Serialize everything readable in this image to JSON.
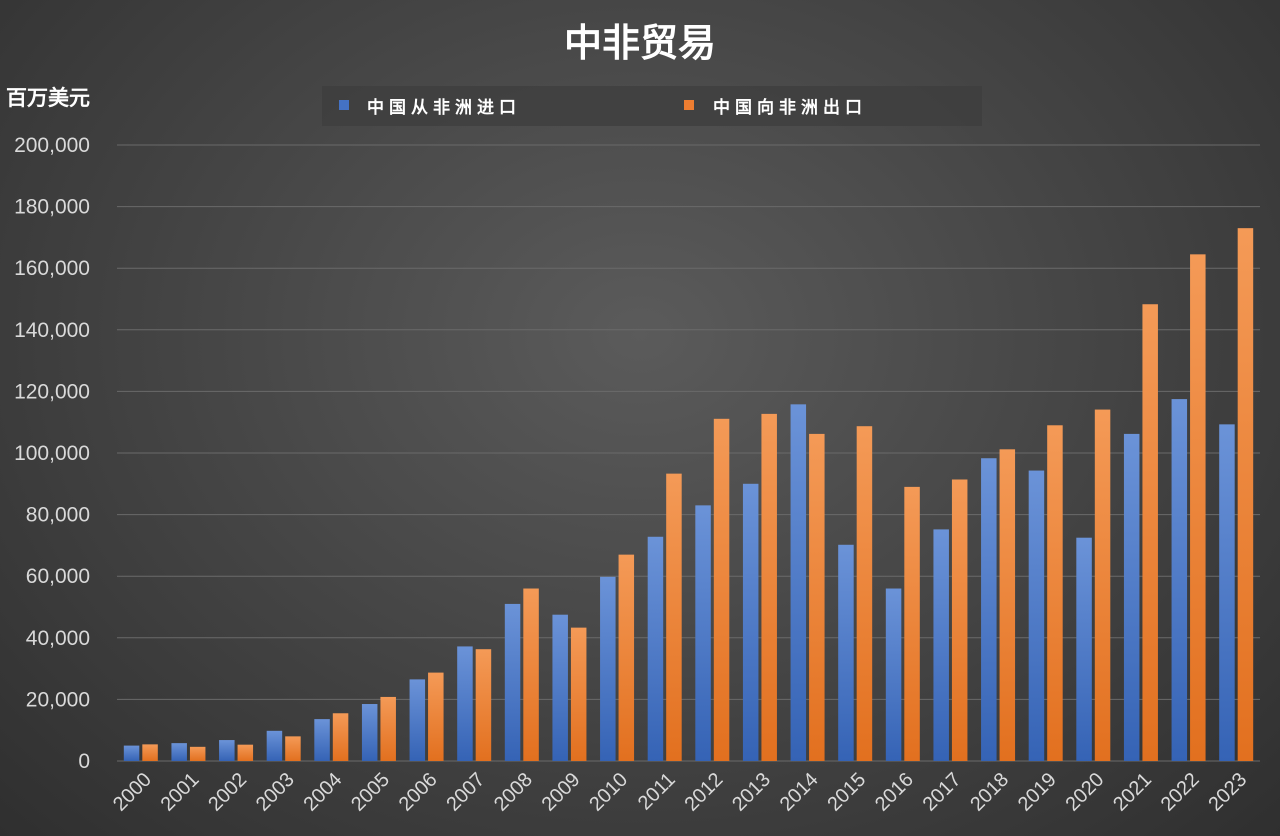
{
  "chart_data": {
    "type": "bar",
    "title": "中非贸易",
    "ylabel": "百万美元",
    "xlabel": "",
    "ylim": [
      0,
      200000
    ],
    "yticks": [
      0,
      20000,
      40000,
      60000,
      80000,
      100000,
      120000,
      140000,
      160000,
      180000,
      200000
    ],
    "ytick_labels": [
      "0",
      "20,000",
      "40,000",
      "60,000",
      "80,000",
      "100,000",
      "120,000",
      "140,000",
      "160,000",
      "180,000",
      "200,000"
    ],
    "grid": true,
    "legend_position": "top",
    "categories": [
      "2000",
      "2001",
      "2002",
      "2003",
      "2004",
      "2005",
      "2006",
      "2007",
      "2008",
      "2009",
      "2010",
      "2011",
      "2012",
      "2013",
      "2014",
      "2015",
      "2016",
      "2017",
      "2018",
      "2019",
      "2020",
      "2021",
      "2022",
      "2023"
    ],
    "series": [
      {
        "name": "中国从非洲进口",
        "color": "#4472c4",
        "values": [
          5000,
          5800,
          6800,
          9800,
          13600,
          18500,
          26500,
          37200,
          51000,
          47500,
          59800,
          72800,
          83000,
          90000,
          115800,
          70200,
          56000,
          75200,
          98300,
          94300,
          72500,
          106200,
          117500,
          109300
        ]
      },
      {
        "name": "中国向非洲出口",
        "color": "#ed7d31",
        "values": [
          5400,
          4600,
          5300,
          8000,
          15500,
          20800,
          28700,
          36300,
          56000,
          43300,
          67000,
          93300,
          111100,
          112700,
          106200,
          108700,
          89000,
          91400,
          101200,
          109000,
          114100,
          148300,
          164500,
          173000
        ]
      }
    ]
  }
}
